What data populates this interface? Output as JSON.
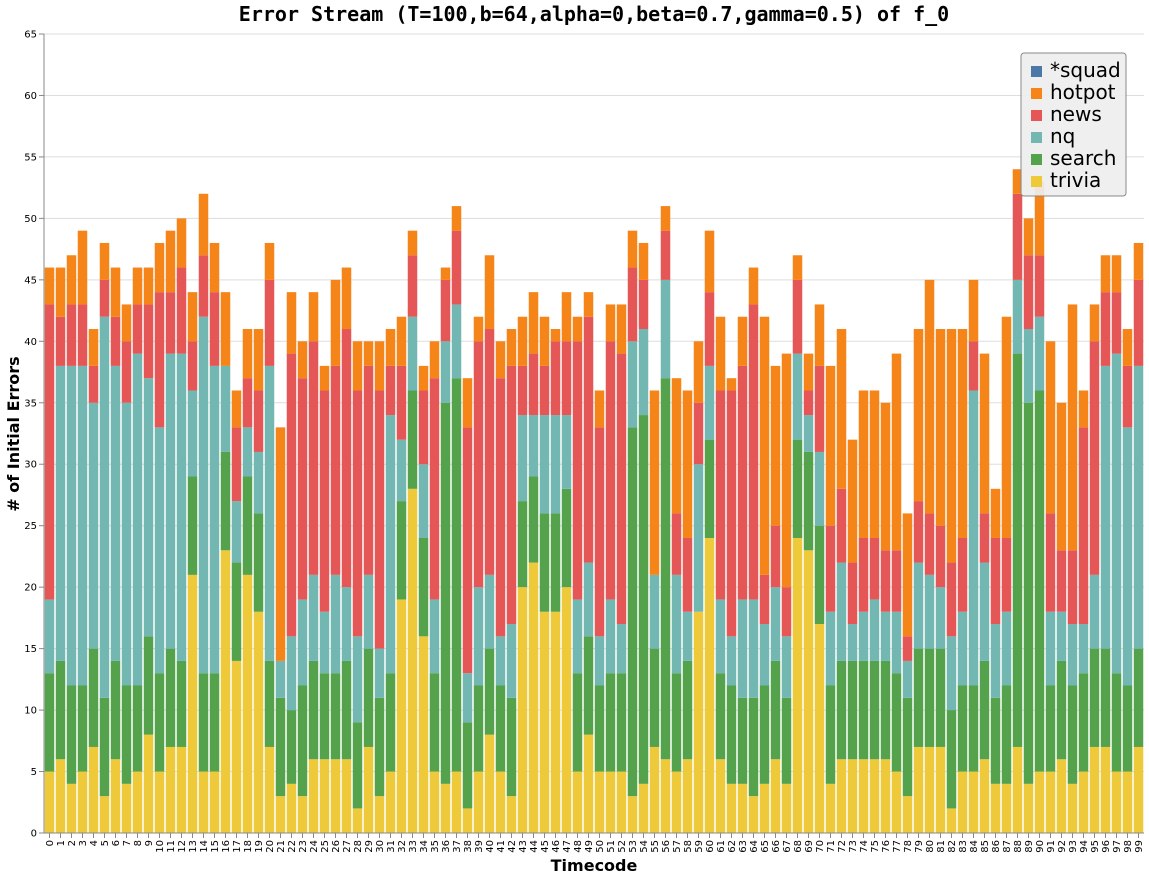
{
  "chart_data": {
    "type": "bar",
    "stacked": true,
    "title": "Error Stream (T=100,b=64,alpha=0,beta=0.7,gamma=0.5) of f_0",
    "xlabel": "Timecode",
    "ylabel": "# of Initial Errors",
    "ylim": [
      0,
      65
    ],
    "yticks": [
      0,
      5,
      10,
      15,
      20,
      25,
      30,
      35,
      40,
      45,
      50,
      55,
      60,
      65
    ],
    "grid": true,
    "legend_position": "top-right",
    "categories": [
      "0",
      "1",
      "2",
      "3",
      "4",
      "5",
      "6",
      "7",
      "8",
      "9",
      "10",
      "11",
      "12",
      "13",
      "14",
      "15",
      "16",
      "17",
      "18",
      "19",
      "20",
      "21",
      "22",
      "23",
      "24",
      "25",
      "26",
      "27",
      "28",
      "29",
      "30",
      "31",
      "32",
      "33",
      "34",
      "35",
      "36",
      "37",
      "38",
      "39",
      "40",
      "41",
      "42",
      "43",
      "44",
      "45",
      "46",
      "47",
      "48",
      "49",
      "50",
      "51",
      "52",
      "53",
      "54",
      "55",
      "56",
      "57",
      "58",
      "59",
      "60",
      "61",
      "62",
      "63",
      "64",
      "65",
      "66",
      "67",
      "68",
      "69",
      "70",
      "71",
      "72",
      "73",
      "74",
      "75",
      "76",
      "77",
      "78",
      "79",
      "80",
      "81",
      "82",
      "83",
      "84",
      "85",
      "86",
      "87",
      "88",
      "89",
      "90",
      "91",
      "92",
      "93",
      "94",
      "95",
      "96",
      "97",
      "98",
      "99"
    ],
    "series": [
      {
        "name": "trivia",
        "color": "#eeca3b",
        "values": [
          5,
          6,
          4,
          5,
          7,
          3,
          6,
          4,
          5,
          8,
          5,
          7,
          7,
          21,
          5,
          5,
          23,
          14,
          21,
          18,
          7,
          3,
          4,
          3,
          6,
          6,
          6,
          6,
          2,
          7,
          3,
          5,
          19,
          28,
          16,
          5,
          4,
          5,
          2,
          5,
          8,
          5,
          3,
          20,
          22,
          18,
          18,
          20,
          5,
          8,
          5,
          5,
          5,
          3,
          4,
          7,
          6,
          5,
          6,
          18,
          24,
          6,
          4,
          4,
          3,
          4,
          6,
          4,
          24,
          23,
          17,
          4,
          6,
          6,
          6,
          6,
          6,
          5,
          3,
          7,
          7,
          7,
          2,
          5,
          5,
          6,
          4,
          4,
          7,
          4,
          5,
          5,
          6,
          4,
          5,
          7,
          7,
          5,
          5,
          7
        ]
      },
      {
        "name": "search",
        "color": "#54a24b",
        "values": [
          8,
          8,
          8,
          7,
          8,
          8,
          8,
          8,
          7,
          8,
          8,
          8,
          7,
          8,
          8,
          8,
          8,
          8,
          8,
          8,
          7,
          8,
          6,
          9,
          8,
          7,
          7,
          8,
          7,
          8,
          8,
          8,
          8,
          8,
          8,
          8,
          31,
          32,
          7,
          7,
          7,
          7,
          8,
          7,
          7,
          8,
          8,
          8,
          8,
          8,
          7,
          8,
          8,
          30,
          30,
          8,
          31,
          8,
          8,
          0,
          8,
          7,
          8,
          7,
          8,
          8,
          8,
          7,
          8,
          8,
          8,
          8,
          8,
          8,
          8,
          8,
          8,
          8,
          8,
          8,
          8,
          8,
          8,
          7,
          7,
          8,
          7,
          8,
          32,
          31,
          31,
          7,
          8,
          8,
          8,
          8,
          8,
          8,
          7,
          8
        ]
      },
      {
        "name": "nq",
        "color": "#72b7b2",
        "values": [
          6,
          24,
          26,
          26,
          20,
          31,
          24,
          23,
          27,
          21,
          20,
          24,
          25,
          7,
          29,
          25,
          7,
          5,
          4,
          5,
          24,
          3,
          6,
          7,
          7,
          5,
          8,
          6,
          7,
          6,
          4,
          21,
          5,
          6,
          6,
          6,
          5,
          6,
          4,
          8,
          6,
          4,
          6,
          7,
          5,
          8,
          8,
          6,
          6,
          6,
          4,
          6,
          4,
          7,
          7,
          6,
          8,
          8,
          4,
          12,
          6,
          6,
          4,
          8,
          8,
          5,
          6,
          5,
          7,
          3,
          6,
          6,
          8,
          3,
          4,
          5,
          4,
          5,
          3,
          7,
          6,
          5,
          6,
          6,
          24,
          8,
          6,
          6,
          6,
          6,
          6,
          6,
          4,
          5,
          4,
          6,
          23,
          26,
          21,
          23
        ]
      },
      {
        "name": "news",
        "color": "#e45756",
        "values": [
          24,
          4,
          5,
          5,
          3,
          3,
          4,
          5,
          4,
          6,
          11,
          5,
          7,
          4,
          5,
          6,
          0,
          6,
          4,
          5,
          7,
          0,
          23,
          18,
          19,
          18,
          17,
          21,
          20,
          17,
          21,
          4,
          6,
          5,
          6,
          18,
          5,
          6,
          20,
          20,
          20,
          21,
          21,
          4,
          5,
          4,
          6,
          6,
          21,
          20,
          17,
          21,
          22,
          6,
          4,
          0,
          4,
          5,
          6,
          5,
          6,
          17,
          20,
          19,
          24,
          4,
          5,
          4,
          6,
          2,
          7,
          7,
          6,
          5,
          6,
          5,
          5,
          5,
          2,
          5,
          5,
          5,
          6,
          6,
          4,
          4,
          7,
          6,
          7,
          6,
          5,
          8,
          5,
          6,
          16,
          19,
          6,
          5,
          5,
          7
        ]
      },
      {
        "name": "hotpot",
        "color": "#f58518",
        "values": [
          3,
          4,
          4,
          6,
          3,
          3,
          4,
          3,
          3,
          3,
          4,
          5,
          4,
          4,
          5,
          4,
          6,
          3,
          4,
          5,
          3,
          19,
          5,
          3,
          4,
          2,
          7,
          5,
          4,
          2,
          4,
          3,
          4,
          2,
          2,
          3,
          1,
          2,
          4,
          2,
          6,
          3,
          3,
          4,
          5,
          4,
          1,
          4,
          2,
          2,
          3,
          3,
          4,
          3,
          3,
          15,
          2,
          11,
          12,
          5,
          5,
          6,
          1,
          4,
          3,
          21,
          13,
          19,
          2,
          3,
          5,
          13,
          13,
          10,
          12,
          12,
          12,
          16,
          10,
          14,
          19,
          16,
          19,
          17,
          5,
          13,
          4,
          18,
          2,
          3,
          6,
          14,
          12,
          20,
          3,
          3,
          3,
          3,
          3,
          3
        ]
      },
      {
        "name": "*squad",
        "color": "#4c78a8",
        "values": [
          0,
          0,
          0,
          0,
          0,
          0,
          0,
          0,
          0,
          0,
          0,
          0,
          0,
          0,
          0,
          0,
          0,
          0,
          0,
          0,
          0,
          0,
          0,
          0,
          0,
          0,
          0,
          0,
          0,
          0,
          0,
          0,
          0,
          0,
          0,
          0,
          0,
          0,
          0,
          0,
          0,
          0,
          0,
          0,
          0,
          0,
          0,
          0,
          0,
          0,
          0,
          0,
          0,
          0,
          0,
          0,
          0,
          0,
          0,
          0,
          0,
          0,
          0,
          0,
          0,
          0,
          0,
          0,
          0,
          0,
          0,
          0,
          0,
          0,
          0,
          0,
          0,
          0,
          0,
          0,
          0,
          0,
          0,
          0,
          0,
          0,
          0,
          0,
          0,
          0,
          0,
          0,
          0,
          0,
          0,
          0,
          0,
          0,
          0,
          0
        ]
      }
    ],
    "legend": [
      "*squad",
      "hotpot",
      "news",
      "nq",
      "search",
      "trivia"
    ]
  }
}
